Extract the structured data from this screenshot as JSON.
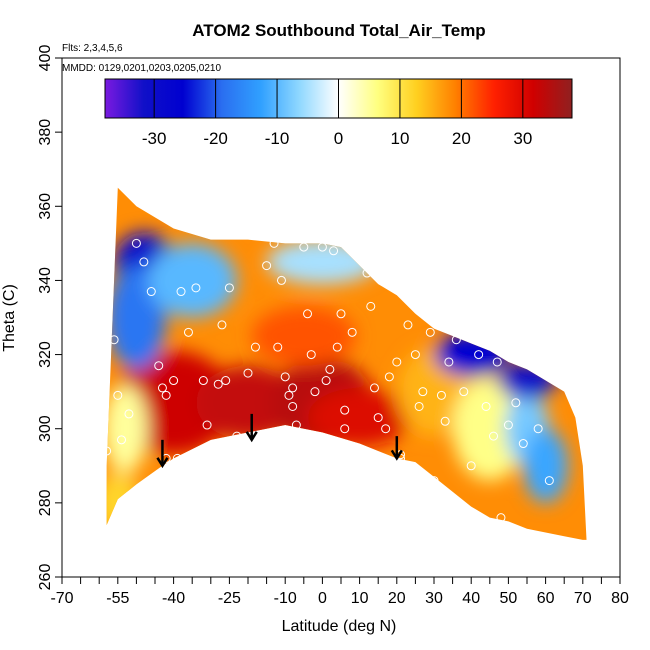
{
  "chart_data": {
    "type": "heatmap",
    "title": "ATOM2 Southbound Total_Air_Temp",
    "notes": [
      "Flts: 2,3,4,5,6",
      "MMDD: 0129,0201,0203,0205,0210"
    ],
    "xlabel": "Latitude (deg N)",
    "ylabel": "Theta (C)",
    "xlim": [
      -70,
      80
    ],
    "ylim": [
      260,
      400
    ],
    "x_ticks": [
      -70,
      -55,
      -40,
      -25,
      -10,
      0,
      10,
      20,
      30,
      40,
      50,
      60,
      70,
      80
    ],
    "y_ticks": [
      260,
      280,
      300,
      320,
      340,
      360,
      380,
      400
    ],
    "x_minor_ticks": [
      -65,
      -60,
      -50,
      -45,
      -35,
      -30,
      -20,
      -15,
      -5,
      5,
      15,
      25,
      35,
      45,
      55,
      65,
      75
    ],
    "colorbar": {
      "range": [
        -38,
        38
      ],
      "ticks": [
        -30,
        -20,
        -10,
        0,
        10,
        20,
        30
      ],
      "colors": [
        "#7a1ae0",
        "#1010c8",
        "#0000d0",
        "#2a6ef0",
        "#30a0ff",
        "#90d8ff",
        "#ffffff",
        "#ffff80",
        "#ffd020",
        "#ff8000",
        "#ff2000",
        "#d00000",
        "#902020"
      ]
    },
    "domain": {
      "lat_min": -58,
      "lat_max": 71,
      "top": [
        [
          -58,
          290
        ],
        [
          -55,
          365
        ],
        [
          -50,
          360
        ],
        [
          -40,
          354
        ],
        [
          -30,
          351
        ],
        [
          -20,
          351
        ],
        [
          -10,
          350
        ],
        [
          0,
          350
        ],
        [
          5,
          349
        ],
        [
          10,
          344
        ],
        [
          15,
          339
        ],
        [
          20,
          336
        ],
        [
          25,
          331
        ],
        [
          30,
          327
        ],
        [
          35,
          325
        ],
        [
          40,
          323
        ],
        [
          45,
          321
        ],
        [
          50,
          318
        ],
        [
          55,
          316
        ],
        [
          60,
          313
        ],
        [
          65,
          310
        ],
        [
          68,
          303
        ],
        [
          70,
          290
        ],
        [
          71,
          270
        ]
      ],
      "bottom": [
        [
          -58,
          274
        ],
        [
          -55,
          281
        ],
        [
          -50,
          285
        ],
        [
          -43,
          290
        ],
        [
          -40,
          292
        ],
        [
          -30,
          297
        ],
        [
          -20,
          299
        ],
        [
          -10,
          301
        ],
        [
          0,
          299
        ],
        [
          10,
          296
        ],
        [
          15,
          294
        ],
        [
          20,
          292
        ],
        [
          25,
          291
        ],
        [
          30,
          287
        ],
        [
          35,
          283
        ],
        [
          40,
          279
        ],
        [
          45,
          276
        ],
        [
          50,
          275
        ],
        [
          55,
          273
        ],
        [
          60,
          272
        ],
        [
          65,
          271
        ],
        [
          70,
          270
        ]
      ]
    },
    "features": [
      {
        "lat": -40,
        "theta": 307,
        "value": 32,
        "radius": [
          16,
          14
        ]
      },
      {
        "lat": -20,
        "theta": 307,
        "value": 33,
        "radius": [
          14,
          10
        ]
      },
      {
        "lat": 0,
        "theta": 307,
        "value": 34,
        "radius": [
          14,
          12
        ]
      },
      {
        "lat": 10,
        "theta": 303,
        "value": 30,
        "radius": [
          14,
          8
        ]
      },
      {
        "lat": -5,
        "theta": 325,
        "value": 22,
        "radius": [
          14,
          8
        ]
      },
      {
        "lat": 30,
        "theta": 310,
        "value": 15,
        "radius": [
          10,
          12
        ]
      },
      {
        "lat": 45,
        "theta": 300,
        "value": 6,
        "radius": [
          10,
          14
        ]
      },
      {
        "lat": 55,
        "theta": 300,
        "value": -8,
        "radius": [
          6,
          10
        ]
      },
      {
        "lat": 60,
        "theta": 290,
        "value": -12,
        "radius": [
          6,
          10
        ]
      },
      {
        "lat": 40,
        "theta": 320,
        "value": -25,
        "radius": [
          10,
          6
        ]
      },
      {
        "lat": 55,
        "theta": 313,
        "value": -30,
        "radius": [
          8,
          5
        ]
      },
      {
        "lat": -48,
        "theta": 345,
        "value": -28,
        "radius": [
          8,
          8
        ]
      },
      {
        "lat": -50,
        "theta": 330,
        "value": -18,
        "radius": [
          8,
          14
        ]
      },
      {
        "lat": -35,
        "theta": 340,
        "value": -10,
        "radius": [
          12,
          10
        ]
      },
      {
        "lat": 0,
        "theta": 345,
        "value": -5,
        "radius": [
          15,
          6
        ]
      },
      {
        "lat": -53,
        "theta": 300,
        "value": 5,
        "radius": [
          6,
          12
        ]
      },
      {
        "lat": -55,
        "theta": 280,
        "value": 12,
        "radius": [
          6,
          8
        ]
      }
    ],
    "arrows": [
      {
        "lat": -43,
        "theta_from": 297,
        "theta_to": 290
      },
      {
        "lat": -19,
        "theta_from": 304,
        "theta_to": 297
      },
      {
        "lat": 20,
        "theta_from": 298,
        "theta_to": 292
      }
    ],
    "observation_points": [
      [
        -58,
        294
      ],
      [
        -56,
        324
      ],
      [
        -55,
        309
      ],
      [
        -54,
        297
      ],
      [
        -52,
        304
      ],
      [
        -50,
        350
      ],
      [
        -48,
        345
      ],
      [
        -46,
        337
      ],
      [
        -44,
        317
      ],
      [
        -43,
        311
      ],
      [
        -42,
        309
      ],
      [
        -42,
        292
      ],
      [
        -40,
        313
      ],
      [
        -39,
        292
      ],
      [
        -38,
        337
      ],
      [
        -36,
        326
      ],
      [
        -34,
        338
      ],
      [
        -32,
        313
      ],
      [
        -31,
        301
      ],
      [
        -30,
        295
      ],
      [
        -28,
        312
      ],
      [
        -27,
        328
      ],
      [
        -26,
        313
      ],
      [
        -25,
        338
      ],
      [
        -23,
        298
      ],
      [
        -20,
        315
      ],
      [
        -18,
        322
      ],
      [
        -15,
        344
      ],
      [
        -13,
        350
      ],
      [
        -12,
        322
      ],
      [
        -11,
        340
      ],
      [
        -10,
        314
      ],
      [
        -9,
        309
      ],
      [
        -8,
        311
      ],
      [
        -8,
        306
      ],
      [
        -7,
        301
      ],
      [
        -5,
        349
      ],
      [
        -4,
        331
      ],
      [
        -3,
        320
      ],
      [
        -2,
        310
      ],
      [
        0,
        349
      ],
      [
        1,
        313
      ],
      [
        2,
        316
      ],
      [
        3,
        348
      ],
      [
        4,
        322
      ],
      [
        5,
        331
      ],
      [
        6,
        305
      ],
      [
        6,
        300
      ],
      [
        8,
        326
      ],
      [
        10,
        349
      ],
      [
        12,
        342
      ],
      [
        13,
        333
      ],
      [
        14,
        311
      ],
      [
        15,
        303
      ],
      [
        17,
        300
      ],
      [
        18,
        314
      ],
      [
        20,
        318
      ],
      [
        21,
        293
      ],
      [
        21,
        292
      ],
      [
        22,
        339
      ],
      [
        23,
        328
      ],
      [
        25,
        320
      ],
      [
        26,
        306
      ],
      [
        27,
        310
      ],
      [
        29,
        326
      ],
      [
        30,
        286
      ],
      [
        32,
        309
      ],
      [
        33,
        302
      ],
      [
        34,
        318
      ],
      [
        36,
        324
      ],
      [
        38,
        310
      ],
      [
        40,
        290
      ],
      [
        42,
        320
      ],
      [
        44,
        306
      ],
      [
        46,
        298
      ],
      [
        47,
        318
      ],
      [
        48,
        276
      ],
      [
        50,
        301
      ],
      [
        52,
        307
      ],
      [
        54,
        296
      ],
      [
        56,
        318
      ],
      [
        58,
        300
      ],
      [
        61,
        286
      ]
    ]
  }
}
